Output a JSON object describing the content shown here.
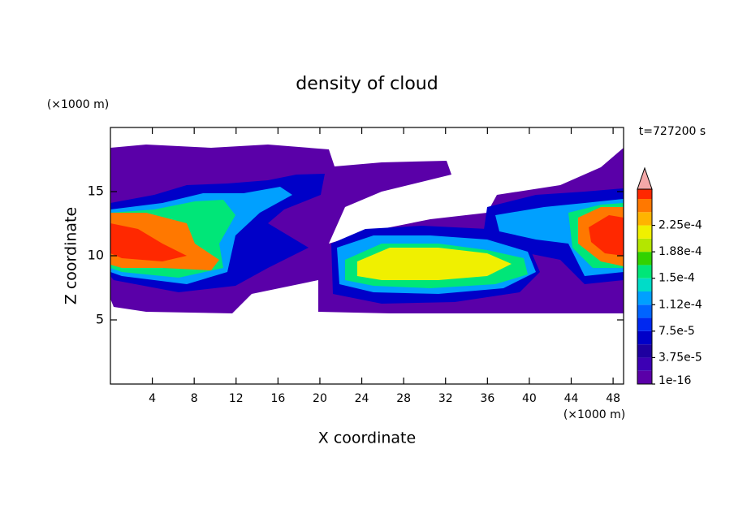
{
  "chart_data": {
    "type": "contour",
    "title": "density of cloud",
    "x_label": "X coordinate",
    "y_label": "Z coordinate",
    "x_unit": "(×1000 m)",
    "y_unit": "(×1000 m)",
    "annotation": "t=727200 s",
    "xlim": [
      0,
      49
    ],
    "ylim": [
      0,
      20
    ],
    "xticks": [
      4,
      8,
      12,
      16,
      20,
      24,
      28,
      32,
      36,
      40,
      44,
      48
    ],
    "yticks": [
      5,
      10,
      15
    ],
    "colorbar": {
      "clim": [
        0,
        0.0002625
      ],
      "ticks": [
        {
          "value": 1e-16,
          "label": "1e-16"
        },
        {
          "value": 3.75e-05,
          "label": "3.75e-5"
        },
        {
          "value": 7.5e-05,
          "label": "7.5e-5"
        },
        {
          "value": 0.0001125,
          "label": "1.12e-4"
        },
        {
          "value": 0.00015,
          "label": "1.5e-4"
        },
        {
          "value": 0.0001875,
          "label": "1.88e-4"
        },
        {
          "value": 0.000225,
          "label": "2.25e-4"
        }
      ],
      "colors": [
        "#5a00a8",
        "#3c00b4",
        "#1e00a0",
        "#0000c8",
        "#0028f0",
        "#0064ff",
        "#00a0ff",
        "#00dcc8",
        "#00e678",
        "#32d200",
        "#b4e600",
        "#f0f000",
        "#ffb400",
        "#ff7800"
      ],
      "over_colors": [
        "#ff2800",
        "#f4a8a8"
      ]
    }
  }
}
